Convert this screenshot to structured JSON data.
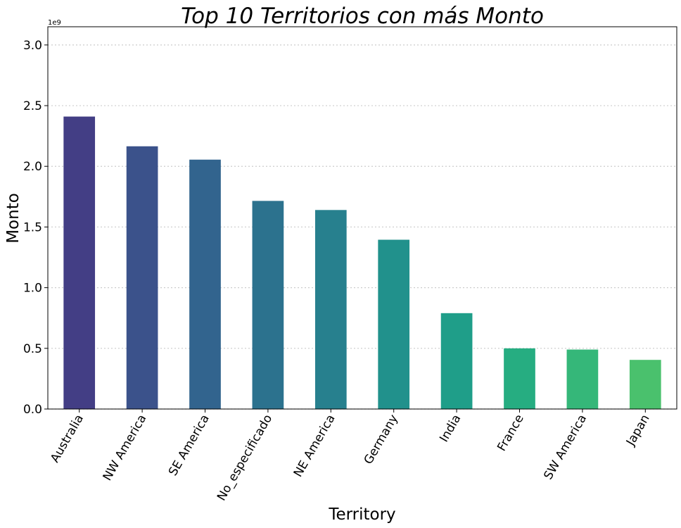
{
  "chart_data": {
    "type": "bar",
    "title": "Top 10 Territorios con más Monto",
    "xlabel": "Territory",
    "ylabel": "Monto",
    "offset_text": "1e9",
    "categories": [
      "Australia",
      "NW America",
      "SE America",
      "No_especificado",
      "NE America",
      "Germany",
      "India",
      "France",
      "SW America",
      "Japan"
    ],
    "values": [
      2.41,
      2.165,
      2.055,
      1.715,
      1.64,
      1.395,
      0.79,
      0.5,
      0.49,
      0.405
    ],
    "value_scale": 1000000000,
    "ylim": [
      0,
      3.15
    ],
    "yticks": [
      0.0,
      0.5,
      1.0,
      1.5,
      2.0,
      2.5,
      3.0
    ],
    "ytick_labels": [
      "0.0",
      "0.5",
      "1.0",
      "1.5",
      "2.0",
      "2.5",
      "3.0"
    ],
    "grid": true,
    "colors": [
      "#433e85",
      "#3b528b",
      "#32648e",
      "#2c728e",
      "#27808e",
      "#21918c",
      "#1f9e89",
      "#26ad81",
      "#35b779",
      "#4ac16d"
    ]
  }
}
